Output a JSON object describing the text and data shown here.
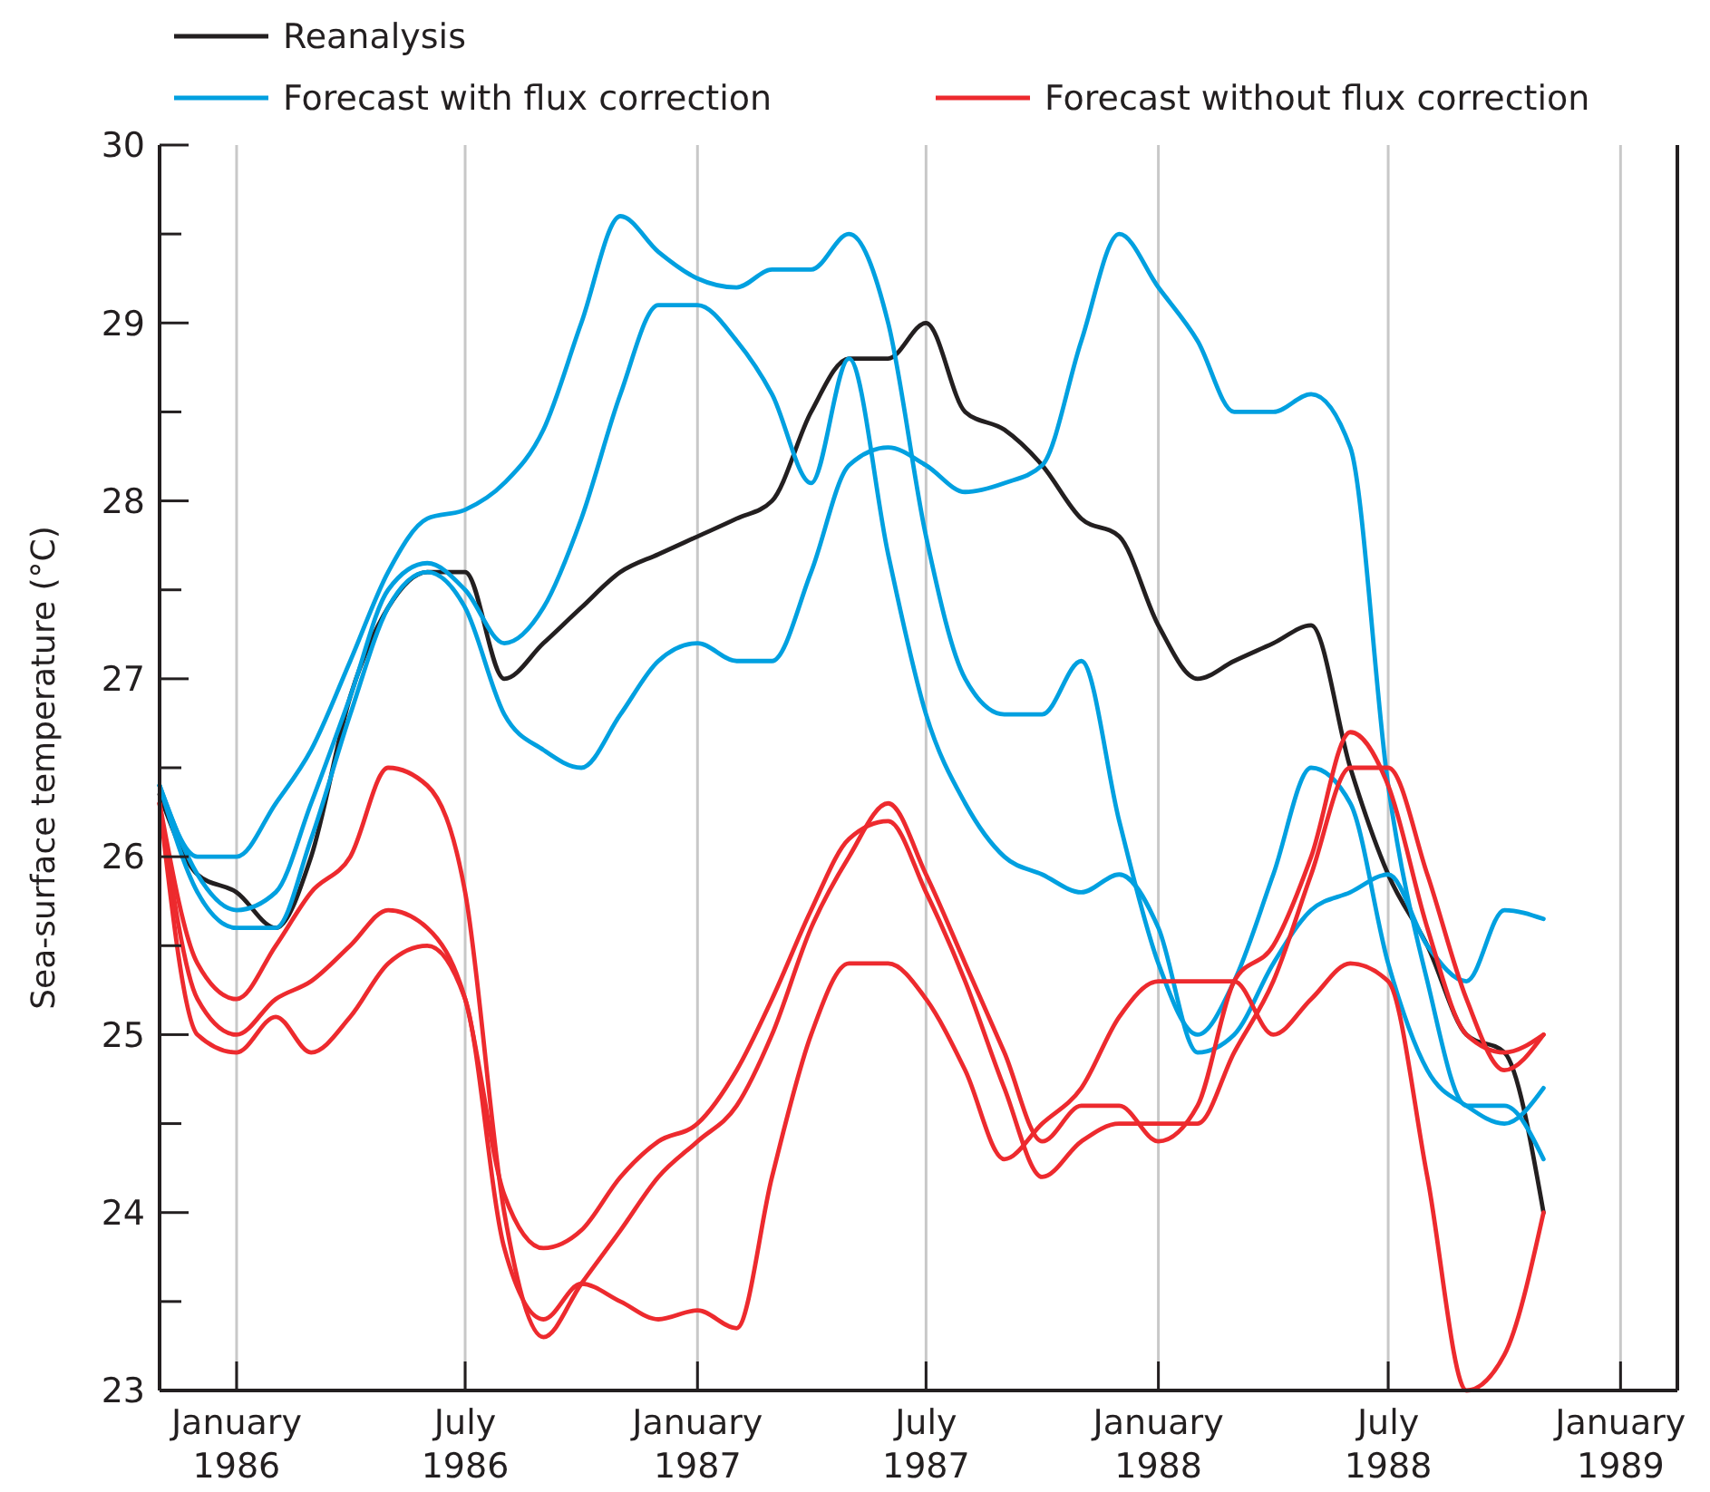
{
  "chart_data": {
    "type": "line",
    "ylabel": "Sea-surface temperature (°C)",
    "x": [
      "1985-11",
      "1985-12",
      "1986-01",
      "1986-02",
      "1986-03",
      "1986-04",
      "1986-05",
      "1986-06",
      "1986-07",
      "1986-08",
      "1986-09",
      "1986-10",
      "1986-11",
      "1986-12",
      "1987-01",
      "1987-02",
      "1987-03",
      "1987-04",
      "1987-05",
      "1987-06",
      "1987-07",
      "1987-08",
      "1987-09",
      "1987-10",
      "1987-11",
      "1987-12",
      "1988-01",
      "1988-02",
      "1988-03",
      "1988-04",
      "1988-05",
      "1988-06",
      "1988-07",
      "1988-08",
      "1988-09",
      "1988-10",
      "1988-11"
    ],
    "series": [
      {
        "name": "Reanalysis",
        "color": "#231f20",
        "values": [
          26.35,
          25.9,
          25.8,
          25.6,
          26.0,
          26.9,
          27.4,
          27.6,
          27.6,
          27.0,
          27.2,
          27.4,
          27.6,
          27.7,
          27.8,
          27.9,
          28.0,
          28.5,
          28.8,
          28.8,
          29.0,
          28.5,
          28.4,
          28.2,
          27.9,
          27.8,
          27.3,
          27.0,
          27.1,
          27.2,
          27.3,
          26.5,
          25.9,
          25.5,
          25.0,
          24.9,
          24.0
        ]
      },
      {
        "name": "Forecast with flux correction",
        "color": "#00a0e0",
        "values": [
          26.4,
          26.0,
          26.0,
          26.3,
          26.6,
          27.1,
          27.6,
          27.9,
          27.95,
          28.1,
          28.4,
          29.0,
          29.6,
          29.4,
          29.25,
          29.2,
          29.3,
          29.3,
          29.5,
          29.0,
          27.8,
          27.0,
          26.8,
          26.8,
          27.1,
          26.2,
          25.4,
          25.0,
          25.3,
          25.9,
          26.5,
          26.3,
          25.4,
          24.8,
          24.6,
          24.5,
          24.7
        ]
      },
      {
        "color": "#00a0e0",
        "values": [
          26.4,
          25.9,
          25.7,
          25.8,
          26.3,
          26.9,
          27.5,
          27.65,
          27.5,
          27.2,
          27.4,
          27.9,
          28.6,
          29.1,
          29.1,
          28.9,
          28.6,
          28.1,
          28.8,
          27.7,
          26.8,
          26.3,
          26.0,
          25.9,
          25.8,
          25.9,
          25.6,
          24.9,
          25.0,
          25.4,
          25.7,
          25.8,
          25.9,
          25.5,
          25.3,
          25.7,
          25.65
        ]
      },
      {
        "color": "#00a0e0",
        "values": [
          26.4,
          25.8,
          25.6,
          25.6,
          26.1,
          26.8,
          27.4,
          27.6,
          27.4,
          26.8,
          26.6,
          26.5,
          26.8,
          27.1,
          27.2,
          27.1,
          27.1,
          27.6,
          28.2,
          28.3,
          28.2,
          28.05,
          28.1,
          28.2,
          28.9,
          29.5,
          29.2,
          28.9,
          28.5,
          28.5,
          28.6,
          28.3,
          26.4,
          25.3,
          24.6,
          24.6,
          24.3
        ]
      },
      {
        "name": "Forecast without flux correction",
        "color": "#ed2a2e",
        "values": [
          26.3,
          25.4,
          25.2,
          25.5,
          25.8,
          26.0,
          26.5,
          26.4,
          25.8,
          24.0,
          23.3,
          23.6,
          23.9,
          24.2,
          24.4,
          24.6,
          25.0,
          25.6,
          26.0,
          26.3,
          25.9,
          25.4,
          24.9,
          24.4,
          24.6,
          24.6,
          24.4,
          24.6,
          25.3,
          25.5,
          26.0,
          26.7,
          26.4,
          25.6,
          25.0,
          24.9,
          25.0
        ]
      },
      {
        "color": "#ed2a2e",
        "values": [
          26.3,
          25.2,
          25.0,
          25.2,
          25.3,
          25.5,
          25.7,
          25.6,
          25.2,
          24.1,
          23.8,
          23.9,
          24.2,
          24.4,
          24.5,
          24.8,
          25.2,
          25.7,
          26.1,
          26.2,
          25.8,
          25.3,
          24.7,
          24.2,
          24.4,
          24.5,
          24.5,
          24.5,
          24.9,
          25.3,
          25.9,
          26.5,
          26.5,
          25.9,
          25.2,
          24.8,
          25.0
        ]
      },
      {
        "color": "#ed2a2e",
        "values": [
          26.3,
          25.0,
          24.9,
          25.1,
          24.9,
          25.1,
          25.4,
          25.5,
          25.2,
          23.8,
          23.4,
          23.6,
          23.5,
          23.4,
          23.45,
          23.35,
          24.2,
          25.0,
          25.4,
          25.4,
          25.2,
          24.8,
          24.3,
          24.5,
          24.7,
          25.1,
          25.3,
          25.3,
          25.3,
          25.0,
          25.2,
          25.4,
          25.3,
          24.2,
          23.0,
          23.2,
          24.0
        ]
      }
    ],
    "xlim": [
      "1985-11-01",
      "1989-02-15"
    ],
    "xticks": [
      {
        "value": "1986-01",
        "label": "January\n1986"
      },
      {
        "value": "1986-07",
        "label": "July\n1986"
      },
      {
        "value": "1987-01",
        "label": "January\n1987"
      },
      {
        "value": "1987-07",
        "label": "July\n1987"
      },
      {
        "value": "1988-01",
        "label": "January\n1988"
      },
      {
        "value": "1988-07",
        "label": "July\n1988"
      },
      {
        "value": "1989-01",
        "label": "January\n1989"
      }
    ],
    "ylim": [
      23,
      30
    ],
    "yticks": [
      23,
      {
        "value": 23.5,
        "label": null
      },
      24,
      {
        "value": 24.5,
        "label": null
      },
      25,
      {
        "value": 25.5,
        "label": null
      },
      26,
      {
        "value": 26.5,
        "label": null
      },
      27,
      {
        "value": 27.5,
        "label": null
      },
      28,
      {
        "value": 28.5,
        "label": null
      },
      29,
      {
        "value": 29.5,
        "label": null
      },
      30
    ],
    "grid": "x",
    "legend": "top",
    "marker": "none",
    "line_style": "solid"
  }
}
